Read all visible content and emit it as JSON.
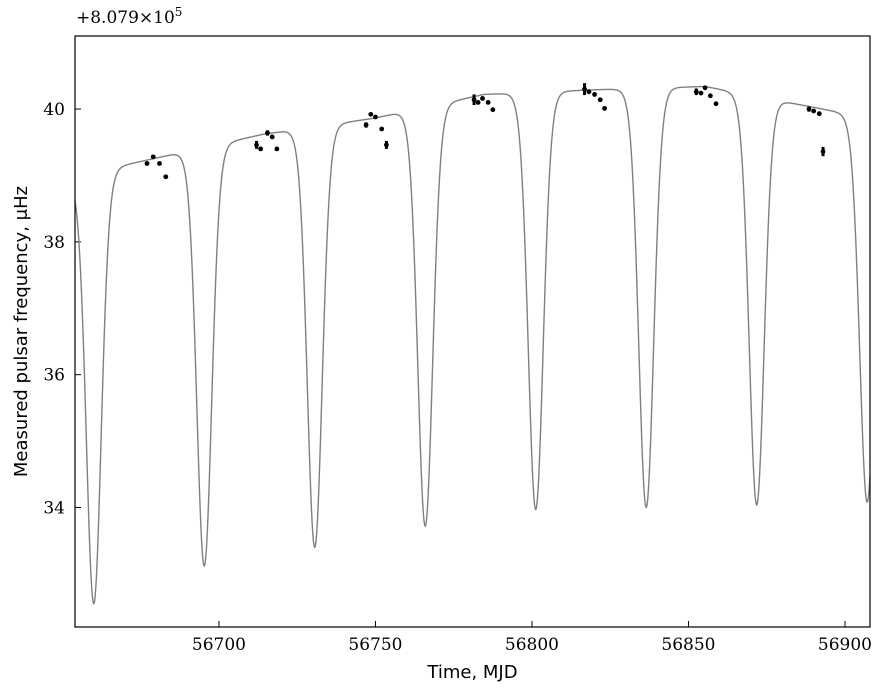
{
  "chart_data": {
    "type": "line",
    "xlabel": "Time, MJD",
    "ylabel": "Measured pulsar frequency, μHz",
    "y_offset_label": "+8.079×10",
    "y_offset_exponent": "5",
    "xlim": [
      56654,
      56908
    ],
    "ylim": [
      32.2,
      41.1
    ],
    "xticks": [
      56700,
      56750,
      56800,
      56850,
      56900
    ],
    "yticks": [
      34,
      36,
      38,
      40
    ],
    "grid": false,
    "model_curve": {
      "color": "#808080",
      "orbital_period_days": 35.3,
      "apex_points": [
        {
          "x": 56678.8,
          "y": 39.25
        },
        {
          "x": 56714.1,
          "y": 39.62
        },
        {
          "x": 56749.4,
          "y": 39.86
        },
        {
          "x": 56784.7,
          "y": 40.22
        },
        {
          "x": 56820.0,
          "y": 40.29
        },
        {
          "x": 56855.3,
          "y": 40.34
        },
        {
          "x": 56890.6,
          "y": 40.02
        }
      ],
      "minima_points": [
        {
          "x": 56660.0,
          "y": 32.55
        },
        {
          "x": 56695.3,
          "y": 33.12
        },
        {
          "x": 56730.6,
          "y": 33.4
        },
        {
          "x": 56765.9,
          "y": 33.72
        },
        {
          "x": 56801.2,
          "y": 33.97
        },
        {
          "x": 56836.5,
          "y": 34.0
        },
        {
          "x": 56871.8,
          "y": 34.04
        }
      ]
    },
    "measurements": {
      "color": "#000000",
      "points": [
        {
          "x": 56677.0,
          "y": 39.18,
          "err": 0.02
        },
        {
          "x": 56679.0,
          "y": 39.28,
          "err": 0.02
        },
        {
          "x": 56681.0,
          "y": 39.18,
          "err": 0.02
        },
        {
          "x": 56683.0,
          "y": 38.98,
          "err": 0.02
        },
        {
          "x": 56712.0,
          "y": 39.46,
          "err": 0.06
        },
        {
          "x": 56713.3,
          "y": 39.4,
          "err": 0.02
        },
        {
          "x": 56715.5,
          "y": 39.64,
          "err": 0.04
        },
        {
          "x": 56717.0,
          "y": 39.58,
          "err": 0.02
        },
        {
          "x": 56718.5,
          "y": 39.4,
          "err": 0.03
        },
        {
          "x": 56747.0,
          "y": 39.76,
          "err": 0.04
        },
        {
          "x": 56748.5,
          "y": 39.92,
          "err": 0.02
        },
        {
          "x": 56750.0,
          "y": 39.88,
          "err": 0.02
        },
        {
          "x": 56752.0,
          "y": 39.7,
          "err": 0.02
        },
        {
          "x": 56753.5,
          "y": 39.46,
          "err": 0.06
        },
        {
          "x": 56781.5,
          "y": 40.14,
          "err": 0.08
        },
        {
          "x": 56782.8,
          "y": 40.1,
          "err": 0.02
        },
        {
          "x": 56784.2,
          "y": 40.16,
          "err": 0.02
        },
        {
          "x": 56786.0,
          "y": 40.1,
          "err": 0.02
        },
        {
          "x": 56787.5,
          "y": 39.99,
          "err": 0.02
        },
        {
          "x": 56816.8,
          "y": 40.3,
          "err": 0.09
        },
        {
          "x": 56818.2,
          "y": 40.26,
          "err": 0.02
        },
        {
          "x": 56820.0,
          "y": 40.22,
          "err": 0.02
        },
        {
          "x": 56821.8,
          "y": 40.14,
          "err": 0.02
        },
        {
          "x": 56823.2,
          "y": 40.01,
          "err": 0.02
        },
        {
          "x": 56852.5,
          "y": 40.26,
          "err": 0.05
        },
        {
          "x": 56854.0,
          "y": 40.24,
          "err": 0.02
        },
        {
          "x": 56855.3,
          "y": 40.32,
          "err": 0.02
        },
        {
          "x": 56857.0,
          "y": 40.2,
          "err": 0.02
        },
        {
          "x": 56858.8,
          "y": 40.08,
          "err": 0.02
        },
        {
          "x": 56888.5,
          "y": 40.0,
          "err": 0.04
        },
        {
          "x": 56890.0,
          "y": 39.97,
          "err": 0.02
        },
        {
          "x": 56891.8,
          "y": 39.93,
          "err": 0.02
        },
        {
          "x": 56893.0,
          "y": 39.36,
          "err": 0.07
        }
      ]
    }
  }
}
